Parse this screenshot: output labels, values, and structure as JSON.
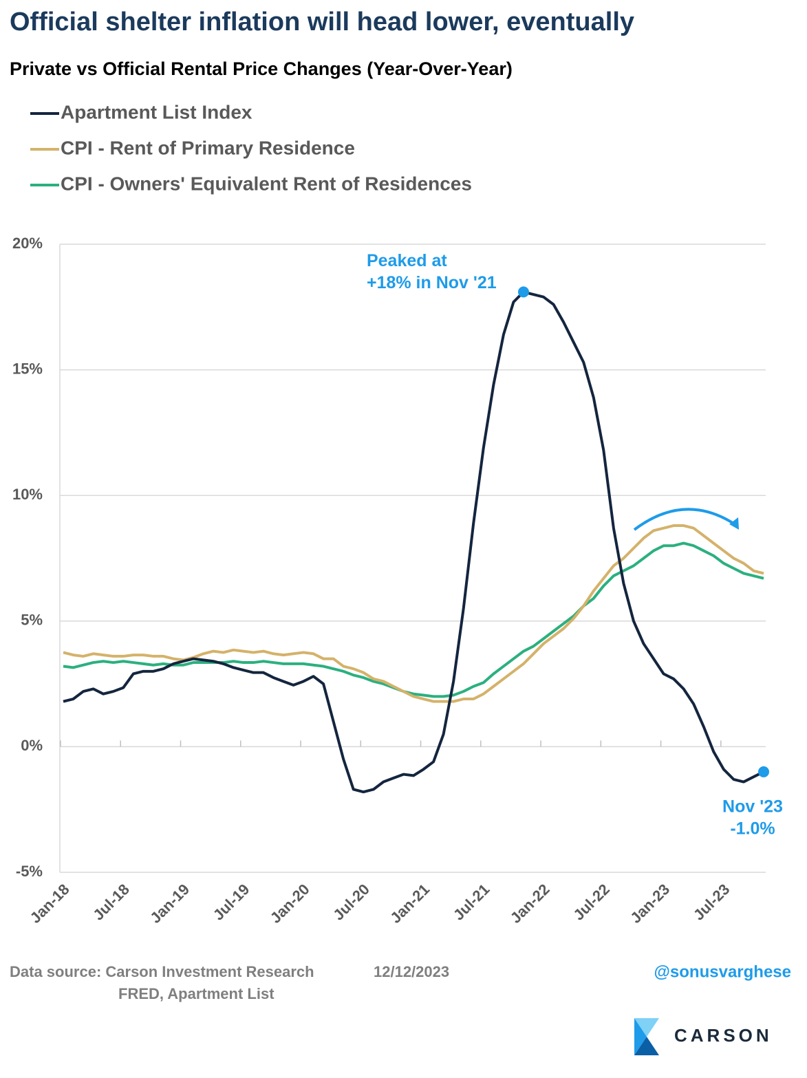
{
  "chart_data": {
    "type": "line",
    "title": "Official shelter inflation will head lower, eventually",
    "subtitle": "Private vs Official Rental Price Changes (Year-Over-Year)",
    "categories": [
      "Jan-18",
      null,
      null,
      null,
      null,
      null,
      "Jul-18",
      null,
      null,
      null,
      null,
      null,
      "Jan-19",
      null,
      null,
      null,
      null,
      null,
      "Jul-19",
      null,
      null,
      null,
      null,
      null,
      "Jan-20",
      null,
      null,
      null,
      null,
      null,
      "Jul-20",
      null,
      null,
      null,
      null,
      null,
      "Jan-21",
      null,
      null,
      null,
      null,
      null,
      "Jul-21",
      null,
      null,
      null,
      null,
      null,
      "Jan-22",
      null,
      null,
      null,
      null,
      null,
      "Jul-22",
      null,
      null,
      null,
      null,
      null,
      "Jan-23",
      null,
      null,
      null,
      null,
      null,
      "Jul-23",
      null,
      null,
      null,
      null
    ],
    "series": [
      {
        "name": "Apartment List Index",
        "color": "#14253e",
        "values": [
          1.8,
          1.9,
          2.2,
          2.3,
          2.1,
          2.2,
          2.35,
          2.9,
          3.0,
          3.0,
          3.1,
          3.3,
          3.4,
          3.5,
          3.45,
          3.4,
          3.3,
          3.15,
          3.05,
          2.95,
          2.95,
          2.75,
          2.6,
          2.45,
          2.6,
          2.8,
          2.5,
          1.0,
          -0.5,
          -1.7,
          -1.8,
          -1.7,
          -1.4,
          -1.25,
          -1.1,
          -1.15,
          -0.9,
          -0.6,
          0.5,
          2.6,
          5.5,
          8.9,
          11.9,
          14.4,
          16.4,
          17.7,
          18.1,
          18.0,
          17.9,
          17.6,
          16.9,
          16.1,
          15.3,
          13.9,
          11.8,
          8.7,
          6.5,
          5.0,
          4.1,
          3.5,
          2.9,
          2.7,
          2.3,
          1.7,
          0.8,
          -0.2,
          -0.9,
          -1.3,
          -1.4,
          -1.2,
          -1.0
        ]
      },
      {
        "name": "CPI - Rent of Primary Residence",
        "color": "#d4b26a",
        "values": [
          3.75,
          3.65,
          3.6,
          3.7,
          3.65,
          3.6,
          3.6,
          3.65,
          3.65,
          3.6,
          3.6,
          3.5,
          3.45,
          3.55,
          3.7,
          3.8,
          3.75,
          3.85,
          3.8,
          3.75,
          3.8,
          3.7,
          3.65,
          3.7,
          3.75,
          3.7,
          3.5,
          3.5,
          3.2,
          3.1,
          2.95,
          2.7,
          2.6,
          2.4,
          2.2,
          2.0,
          1.9,
          1.8,
          1.8,
          1.8,
          1.9,
          1.9,
          2.1,
          2.4,
          2.7,
          3.0,
          3.3,
          3.7,
          4.1,
          4.4,
          4.7,
          5.1,
          5.6,
          6.2,
          6.7,
          7.2,
          7.5,
          7.9,
          8.3,
          8.6,
          8.7,
          8.8,
          8.8,
          8.7,
          8.4,
          8.1,
          7.8,
          7.5,
          7.3,
          7.0,
          6.9
        ]
      },
      {
        "name": "CPI - Owners' Equivalent Rent of Residences",
        "color": "#2bb07f",
        "values": [
          3.2,
          3.15,
          3.25,
          3.35,
          3.4,
          3.35,
          3.4,
          3.35,
          3.3,
          3.25,
          3.3,
          3.25,
          3.25,
          3.35,
          3.35,
          3.35,
          3.35,
          3.4,
          3.35,
          3.35,
          3.4,
          3.35,
          3.3,
          3.3,
          3.3,
          3.25,
          3.2,
          3.1,
          3.0,
          2.85,
          2.75,
          2.6,
          2.5,
          2.35,
          2.2,
          2.1,
          2.05,
          2.0,
          2.0,
          2.05,
          2.2,
          2.4,
          2.55,
          2.9,
          3.2,
          3.5,
          3.8,
          4.0,
          4.3,
          4.6,
          4.9,
          5.2,
          5.6,
          5.9,
          6.4,
          6.8,
          7.0,
          7.2,
          7.5,
          7.8,
          8.0,
          8.0,
          8.1,
          8.0,
          7.8,
          7.6,
          7.3,
          7.1,
          6.9,
          6.8,
          6.7
        ]
      }
    ],
    "ylim": [
      -5,
      20
    ],
    "yticks": [
      {
        "value": -5,
        "label": "-5%"
      },
      {
        "value": 0,
        "label": "0%"
      },
      {
        "value": 5,
        "label": "5%"
      },
      {
        "value": 10,
        "label": "10%"
      },
      {
        "value": 15,
        "label": "15%"
      },
      {
        "value": 20,
        "label": "20%"
      }
    ],
    "grid": true,
    "annotations": [
      {
        "lines": [
          "Peaked at",
          "+18% in Nov '21"
        ],
        "color": "#1e9be9"
      },
      {
        "lines": [
          "Nov '23",
          "-1.0%"
        ],
        "color": "#1e9be9"
      }
    ],
    "source": "Data source: Carson Investment Research",
    "date": "12/12/2023",
    "source_detail": "FRED, Apartment List",
    "handle": "@sonusvarghese",
    "brand": "CARSON"
  }
}
